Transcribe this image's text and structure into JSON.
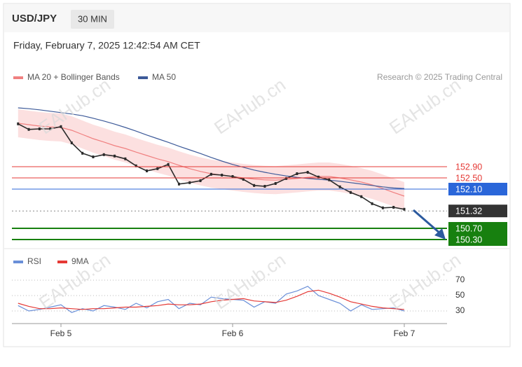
{
  "header": {
    "symbol": "USD/JPY",
    "interval": "30 MIN",
    "date": "Friday, February 7, 2025 12:42:54 AM CET",
    "credit": "Research © 2025 Trading Central",
    "watermark": "EAHub.cn"
  },
  "chart_data": [
    {
      "type": "line",
      "categories": [
        null,
        null,
        null,
        null,
        "Feb 5",
        null,
        null,
        null,
        null,
        null,
        null,
        null,
        null,
        null,
        null,
        null,
        null,
        null,
        null,
        null,
        "Feb 6",
        null,
        null,
        null,
        null,
        null,
        null,
        null,
        null,
        null,
        null,
        null,
        null,
        null,
        null,
        null,
        "Feb 7"
      ],
      "price": [
        154.43,
        154.23,
        154.25,
        154.25,
        154.33,
        153.75,
        153.38,
        153.25,
        153.33,
        153.28,
        153.18,
        152.93,
        152.75,
        152.83,
        152.98,
        152.28,
        152.33,
        152.4,
        152.63,
        152.6,
        152.55,
        152.45,
        152.23,
        152.2,
        152.3,
        152.48,
        152.65,
        152.7,
        152.53,
        152.43,
        152.18,
        151.98,
        151.83,
        151.58,
        151.43,
        151.45,
        151.38
      ],
      "price_color": "#2b2b2b",
      "series": [
        {
          "name": "MA 20 + Bollinger Bands",
          "color": "#f08080",
          "band_color": "#fbd3d3",
          "values": [
            154.45,
            154.4,
            154.35,
            154.32,
            154.3,
            154.2,
            154.05,
            153.9,
            153.78,
            153.65,
            153.55,
            153.42,
            153.3,
            153.18,
            153.08,
            152.95,
            152.83,
            152.73,
            152.65,
            152.6,
            152.55,
            152.5,
            152.46,
            152.43,
            152.42,
            152.45,
            152.48,
            152.52,
            152.55,
            152.55,
            152.5,
            152.43,
            152.35,
            152.25,
            152.12,
            151.98,
            151.85
          ],
          "upper": [
            154.95,
            154.9,
            154.85,
            154.82,
            154.8,
            154.7,
            154.55,
            154.4,
            154.28,
            154.15,
            154.05,
            153.92,
            153.8,
            153.68,
            153.58,
            153.45,
            153.33,
            153.23,
            153.15,
            153.1,
            153.05,
            153.0,
            152.96,
            152.93,
            152.92,
            152.95,
            152.98,
            153.02,
            153.05,
            153.05,
            153.0,
            152.93,
            152.85,
            152.75,
            152.62,
            152.48,
            152.35
          ],
          "lower": [
            153.95,
            153.9,
            153.85,
            153.82,
            153.8,
            153.7,
            153.55,
            153.4,
            153.28,
            153.15,
            153.05,
            152.92,
            152.8,
            152.68,
            152.58,
            152.45,
            152.33,
            152.23,
            152.15,
            152.1,
            152.05,
            152.0,
            151.96,
            151.93,
            151.92,
            151.95,
            151.98,
            152.02,
            152.05,
            152.05,
            152.0,
            151.93,
            151.85,
            151.75,
            151.62,
            151.48,
            151.35
          ]
        },
        {
          "name": "MA 50",
          "color": "#3d5a99",
          "values": [
            155.0,
            154.97,
            154.93,
            154.88,
            154.83,
            154.78,
            154.72,
            154.63,
            154.53,
            154.42,
            154.3,
            154.17,
            154.03,
            153.9,
            153.77,
            153.63,
            153.5,
            153.37,
            153.23,
            153.1,
            152.98,
            152.88,
            152.78,
            152.7,
            152.63,
            152.57,
            152.52,
            152.48,
            152.45,
            152.42,
            152.38,
            152.33,
            152.28,
            152.23,
            152.18,
            152.14,
            152.12
          ]
        }
      ],
      "levels": [
        {
          "value": 152.9,
          "label": "152.90",
          "color": "#e53935"
        },
        {
          "value": 152.5,
          "label": "152.50",
          "color": "#e53935"
        },
        {
          "value": 152.1,
          "label": "152.10",
          "color": "#2a66d9"
        },
        {
          "value": 151.32,
          "label": "151.32",
          "color": "#333333"
        },
        {
          "value": 150.7,
          "label": "150.70",
          "color": "#17800f"
        },
        {
          "value": 150.3,
          "label": "150.30",
          "color": "#17800f"
        }
      ],
      "ylim": [
        150.1,
        155.6
      ]
    },
    {
      "type": "line",
      "series": [
        {
          "name": "RSI",
          "color": "#6a8fd8",
          "values": [
            37,
            30,
            32,
            35,
            38,
            28,
            33,
            30,
            37,
            35,
            32,
            40,
            34,
            42,
            45,
            33,
            40,
            38,
            48,
            46,
            45,
            44,
            35,
            42,
            40,
            52,
            56,
            62,
            50,
            45,
            40,
            30,
            38,
            32,
            33,
            34,
            30
          ]
        },
        {
          "name": "9MA",
          "color": "#e53935",
          "values": [
            40,
            36,
            33,
            33,
            34,
            33,
            32,
            33,
            33,
            34,
            35,
            35,
            36,
            37,
            39,
            38,
            38,
            39,
            42,
            44,
            45,
            46,
            43,
            42,
            41,
            44,
            49,
            55,
            57,
            53,
            48,
            42,
            39,
            36,
            34,
            33,
            32
          ]
        }
      ],
      "ylim": [
        15.5,
        88.2
      ],
      "yticks": [
        30,
        50,
        70
      ],
      "grid": true
    }
  ]
}
